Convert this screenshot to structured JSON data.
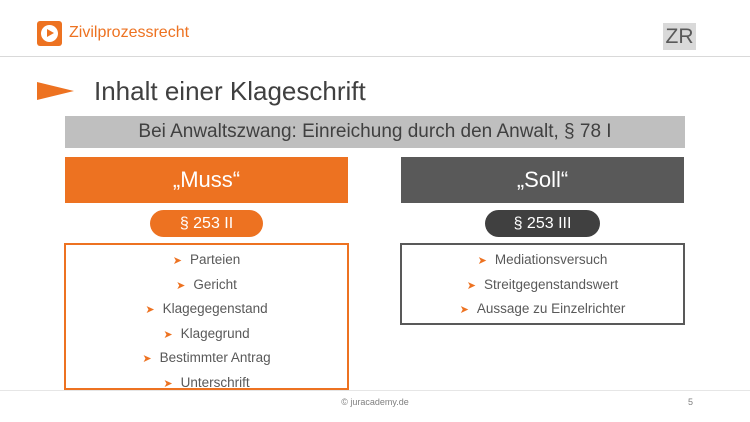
{
  "header": {
    "app_title": "Zivilprozessrecht",
    "badge": "ZR",
    "logo_icon": "play-circle-icon"
  },
  "slide": {
    "title": "Inhalt einer Klageschrift",
    "banner": "Bei Anwaltszwang: Einreichung durch den Anwalt, § 78 I"
  },
  "columns": [
    {
      "heading": "„Muss“",
      "section": "§ 253 II",
      "items": [
        "Parteien",
        "Gericht",
        "Klagegegenstand",
        "Klagegrund",
        "Bestimmter Antrag",
        "Unterschrift"
      ]
    },
    {
      "heading": "„Soll“",
      "section": "§ 253 III",
      "items": [
        "Mediationsversuch",
        "Streitgegenstandswert",
        "Aussage zu Einzelrichter"
      ]
    }
  ],
  "footer": {
    "text": "© juracademy.de",
    "page": "5"
  },
  "colors": {
    "accent": "#ed7221",
    "dark": "#595959",
    "banner": "#bfbfbf"
  }
}
